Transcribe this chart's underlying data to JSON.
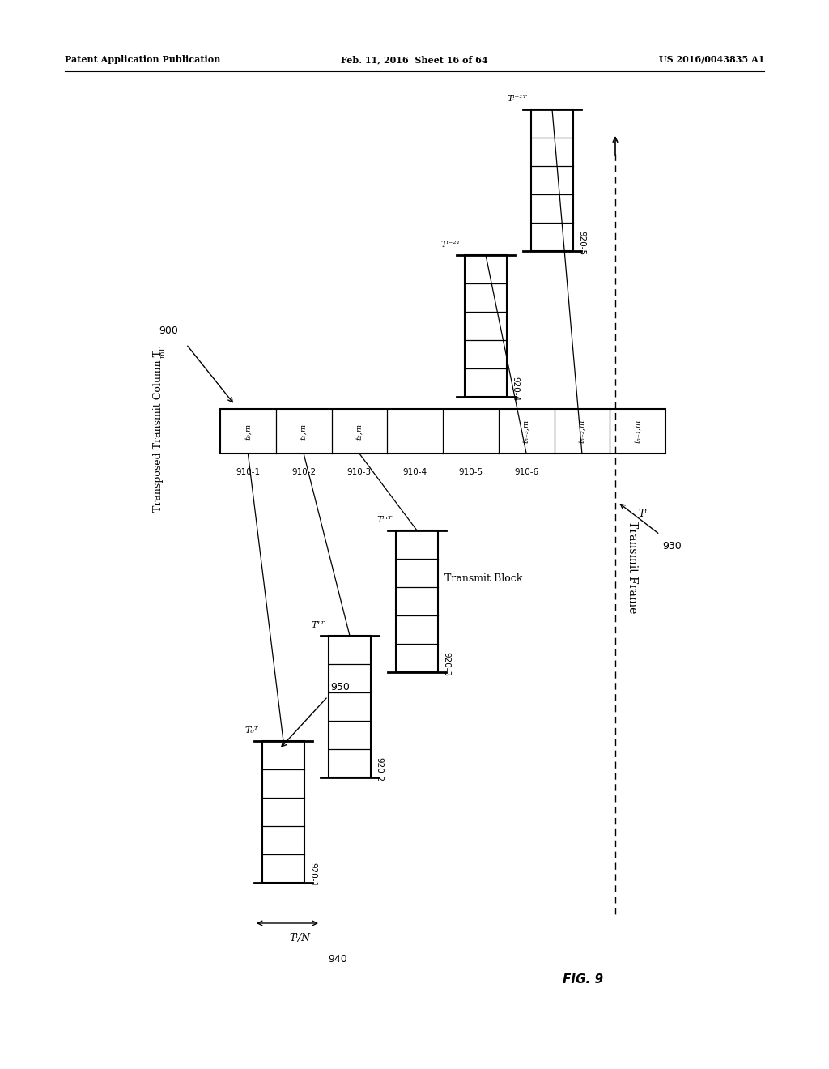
{
  "bg_color": "#ffffff",
  "header_left": "Patent Application Publication",
  "header_mid": "Feb. 11, 2016  Sheet 16 of 64",
  "header_right": "US 2016/0043835 A1",
  "fig_label": "FIG. 9",
  "label_900": "900",
  "label_950": "950",
  "label_930": "930",
  "label_940": "940",
  "title_text": "Transposed Transmit Column T",
  "title_super": "mT",
  "transmit_frame_label": "Transmit Frame",
  "transmit_block_label": "Transmit Block",
  "cell_labels": [
    "t₀,m",
    "t₁,m",
    "t₂,m",
    "",
    "",
    "tₙ₋₃,m",
    "tₙ₋₂,m",
    "tₙ₋₁,m"
  ],
  "cell_ids_below": [
    "910-1",
    "910-2",
    "910-3",
    "910-4",
    "910-5",
    "910-6"
  ],
  "block_top_labels": [
    "T₀ᵀ",
    "T¹ᵀ",
    "Tᵐᵀ",
    "Tᵎ⁻²ᵀ",
    "Tᵎ⁻¹ᵀ"
  ],
  "block_ids": [
    "920-1",
    "920-2",
    "920-3",
    "920-4",
    "920-5"
  ]
}
